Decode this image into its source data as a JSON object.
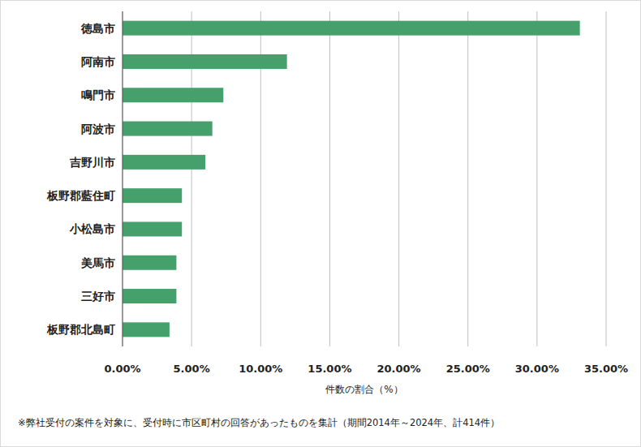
{
  "chart_data": {
    "type": "bar",
    "orientation": "horizontal",
    "categories": [
      "徳島市",
      "阿南市",
      "鳴門市",
      "阿波市",
      "吉野川市",
      "板野郡藍住町",
      "小松島市",
      "美馬市",
      "三好市",
      "板野郡北島町"
    ],
    "values": [
      33.1,
      11.9,
      7.3,
      6.5,
      6.0,
      4.3,
      4.3,
      3.9,
      3.9,
      3.4
    ],
    "color": "#46a06c",
    "x_label": "件数の割合（%）",
    "xlim": [
      0,
      35
    ],
    "xticks": [
      {
        "value": 0,
        "label": "0.00%"
      },
      {
        "value": 5,
        "label": "5.00%"
      },
      {
        "value": 10,
        "label": "10.00%"
      },
      {
        "value": 15,
        "label": "15.00%"
      },
      {
        "value": 20,
        "label": "20.00%"
      },
      {
        "value": 25,
        "label": "25.00%"
      },
      {
        "value": 30,
        "label": "30.00%"
      },
      {
        "value": 35,
        "label": "35.00%"
      }
    ],
    "grid": true,
    "footnote": "※弊社受付の案件を対象に、受付時に市区町村の回答があったものを集計（期間2014年～2024年、計414件）"
  }
}
